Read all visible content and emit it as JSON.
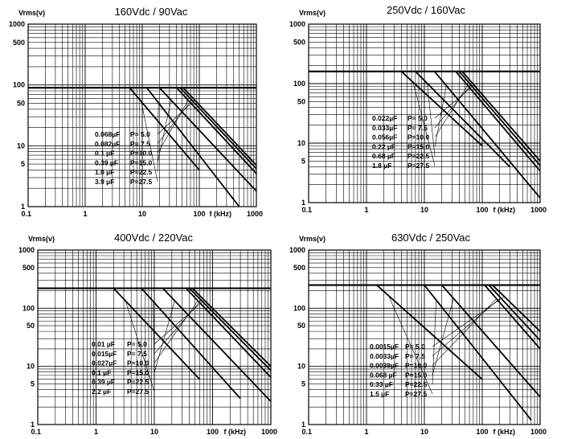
{
  "chart_data": [
    {
      "type": "line",
      "title": "160Vdc / 90Vac",
      "ylabel": "Vrms(v)",
      "xlabel": "f (kHz)",
      "xscale": "log",
      "yscale": "log",
      "xlim": [
        0.1,
        1000
      ],
      "ylim": [
        1,
        1000
      ],
      "x_ticks": [
        "0.1",
        "1",
        "10",
        "100",
        "1000"
      ],
      "y_ticks": [
        "1",
        "5",
        "10",
        "50",
        "100",
        "500",
        "1000"
      ],
      "plateau_v": 90,
      "series": [
        {
          "name": "0.068µF P= 5.0",
          "cap": "0.068µF",
          "p": "P= 5.0",
          "knee_khz": 52,
          "end_khz": 1000,
          "end_v": 4.8
        },
        {
          "name": "0.082µF P= 7.5",
          "cap": "0.082µF",
          "p": "P= 7.5",
          "knee_khz": 46,
          "end_khz": 1000,
          "end_v": 4.2
        },
        {
          "name": "0.1   µF P=10.0",
          "cap": "0.1   µF",
          "p": "P=10.0",
          "knee_khz": 40,
          "end_khz": 1000,
          "end_v": 3.5
        },
        {
          "name": "0.39  µF P=15.0",
          "cap": "0.39  µF",
          "p": "P=15.0",
          "knee_khz": 20,
          "end_khz": 1000,
          "end_v": 1.8
        },
        {
          "name": "1.0   µF P=22.5",
          "cap": "1.0   µF",
          "p": "P=22.5",
          "knee_khz": 12,
          "end_khz": 500,
          "end_v": 1.0
        },
        {
          "name": "3.9   µF P=27.5",
          "cap": "3.9   µF",
          "p": "P=27.5",
          "knee_khz": 6,
          "end_khz": 100,
          "end_v": 4.0
        }
      ]
    },
    {
      "type": "line",
      "title": "250Vdc / 160Vac",
      "ylabel": "Vrms(v)",
      "xlabel": "f (kHz)",
      "xscale": "log",
      "yscale": "log",
      "xlim": [
        0.1,
        1000
      ],
      "ylim": [
        1,
        1000
      ],
      "x_ticks": [
        "0.1",
        "1",
        "10",
        "100",
        "1000"
      ],
      "y_ticks": [
        "1",
        "5",
        "10",
        "50",
        "100",
        "500",
        "1000"
      ],
      "plateau_v": 160,
      "series": [
        {
          "name": "0.022µF P= 5.0",
          "cap": "0.022µF",
          "p": "P= 5.0",
          "knee_khz": 45,
          "end_khz": 1000,
          "end_v": 5.0
        },
        {
          "name": "0.033µF P= 7.5",
          "cap": "0.033µF",
          "p": "P= 7.5",
          "knee_khz": 40,
          "end_khz": 1000,
          "end_v": 4.2
        },
        {
          "name": "0.056µF P=10.0",
          "cap": "0.056µF",
          "p": "P=10.0",
          "knee_khz": 35,
          "end_khz": 1000,
          "end_v": 3.4
        },
        {
          "name": "0.22  µF P=15.0",
          "cap": "0.22  µF",
          "p": "P=15.0",
          "knee_khz": 15,
          "end_khz": 1000,
          "end_v": 1.2
        },
        {
          "name": "0.68  µF P=22.5",
          "cap": "0.68  µF",
          "p": "P=22.5",
          "knee_khz": 7,
          "end_khz": 300,
          "end_v": 4.0
        },
        {
          "name": "1.8   µF P=27.5",
          "cap": "1.8   µF",
          "p": "P=27.5",
          "knee_khz": 4,
          "end_khz": 100,
          "end_v": 9.0
        }
      ]
    },
    {
      "type": "line",
      "title": "400Vdc / 220Vac",
      "ylabel": "Vrms(v)",
      "xlabel": "f (kHz)",
      "xscale": "log",
      "yscale": "log",
      "xlim": [
        0.1,
        1000
      ],
      "ylim": [
        1,
        1000
      ],
      "x_ticks": [
        "0.1",
        "1",
        "10",
        "100",
        "1000"
      ],
      "y_ticks": [
        "1",
        "5",
        "10",
        "50",
        "100",
        "500",
        "1000"
      ],
      "plateau_v": 220,
      "series": [
        {
          "name": "0.01  µF P= 5.0",
          "cap": "0.01  µF",
          "p": "P= 5.0",
          "knee_khz": 45,
          "end_khz": 1000,
          "end_v": 10
        },
        {
          "name": "0.015µF P= 7.5",
          "cap": "0.015µF",
          "p": "P= 7.5",
          "knee_khz": 40,
          "end_khz": 1000,
          "end_v": 8.5
        },
        {
          "name": "0.027µF P=10.0",
          "cap": "0.027µF",
          "p": "P=10.0",
          "knee_khz": 35,
          "end_khz": 1000,
          "end_v": 6.5
        },
        {
          "name": "0.1   µF P=15.0",
          "cap": "0.1   µF",
          "p": "P=15.0",
          "knee_khz": 14,
          "end_khz": 1000,
          "end_v": 2.5
        },
        {
          "name": "0.39  µF P=22.5",
          "cap": "0.39  µF",
          "p": "P=22.5",
          "knee_khz": 6,
          "end_khz": 300,
          "end_v": 2.8
        },
        {
          "name": "2.2   µF P=27.5",
          "cap": "2.2   µF",
          "p": "P=27.5",
          "knee_khz": 2,
          "end_khz": 60,
          "end_v": 6.0
        }
      ]
    },
    {
      "type": "line",
      "title": "630Vdc / 250Vac",
      "ylabel": "Vrms(v)",
      "xlabel": "f (kHz)",
      "xscale": "log",
      "yscale": "log",
      "xlim": [
        0.1,
        1000
      ],
      "ylim": [
        1,
        1000
      ],
      "x_ticks": [
        "0.1",
        "1",
        "10",
        "100",
        "1000"
      ],
      "y_ticks": [
        "1",
        "5",
        "10",
        "50",
        "100",
        "500",
        "1000"
      ],
      "plateau_v": 250,
      "series": [
        {
          "name": "0.0015µF P= 5.0",
          "cap": "0.0015µF",
          "p": "P= 5.0",
          "knee_khz": 150,
          "end_khz": 1000,
          "end_v": 40
        },
        {
          "name": "0.0033µF P= 7.5",
          "cap": "0.0033µF",
          "p": "P= 7.5",
          "knee_khz": 130,
          "end_khz": 1000,
          "end_v": 28
        },
        {
          "name": "0.0039µF P=10.0",
          "cap": "0.0039µF",
          "p": "P=10.0",
          "knee_khz": 110,
          "end_khz": 1000,
          "end_v": 20
        },
        {
          "name": "0.068 µF P=15.0",
          "cap": "0.068 µF",
          "p": "P=15.0",
          "knee_khz": 20,
          "end_khz": 1000,
          "end_v": 3.0
        },
        {
          "name": "0.33  µF P=22.5",
          "cap": "0.33  µF",
          "p": "P=22.5",
          "knee_khz": 10,
          "end_khz": 700,
          "end_v": 1.2
        },
        {
          "name": "1.5   µF P=27.5",
          "cap": "1.5   µF",
          "p": "P=27.5",
          "knee_khz": 1.5,
          "end_khz": 100,
          "end_v": 6.0
        }
      ]
    }
  ]
}
